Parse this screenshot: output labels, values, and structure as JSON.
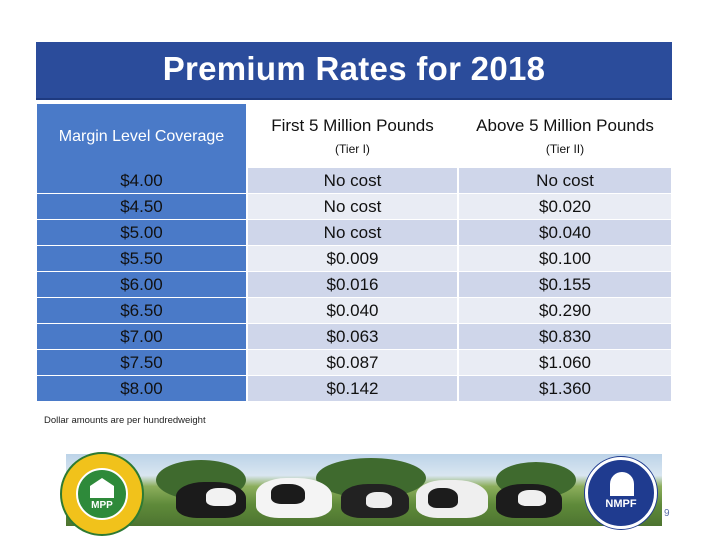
{
  "slide": {
    "title": "Premium Rates for 2018",
    "footnote": "Dollar amounts are per hundredweight",
    "page_number": "9"
  },
  "table": {
    "headers": [
      {
        "label": "Margin Level Coverage",
        "sub": ""
      },
      {
        "label": "First 5 Million Pounds",
        "sub": "(Tier I)"
      },
      {
        "label": "Above 5 Million Pounds",
        "sub": "(Tier II)"
      }
    ],
    "rows": [
      [
        "$4.00",
        "No cost",
        "No cost"
      ],
      [
        "$4.50",
        "No cost",
        "$0.020"
      ],
      [
        "$5.00",
        "No cost",
        "$0.040"
      ],
      [
        "$5.50",
        "$0.009",
        "$0.100"
      ],
      [
        "$6.00",
        "$0.016",
        "$0.155"
      ],
      [
        "$6.50",
        "$0.040",
        "$0.290"
      ],
      [
        "$7.00",
        "$0.063",
        "$0.830"
      ],
      [
        "$7.50",
        "$0.087",
        "$1.060"
      ],
      [
        "$8.00",
        "$0.142",
        "$1.360"
      ]
    ]
  },
  "logos": {
    "left": {
      "text": "MPP",
      "ring_text": "MARGIN PROTECTION PROGRAM"
    },
    "right": {
      "text": "NMPF"
    }
  },
  "colors": {
    "title_bar": "#2b4c9b",
    "first_column": "#4a7ac8",
    "row_band_dark": "#cfd6ea",
    "row_band_light": "#e9ecf4"
  }
}
